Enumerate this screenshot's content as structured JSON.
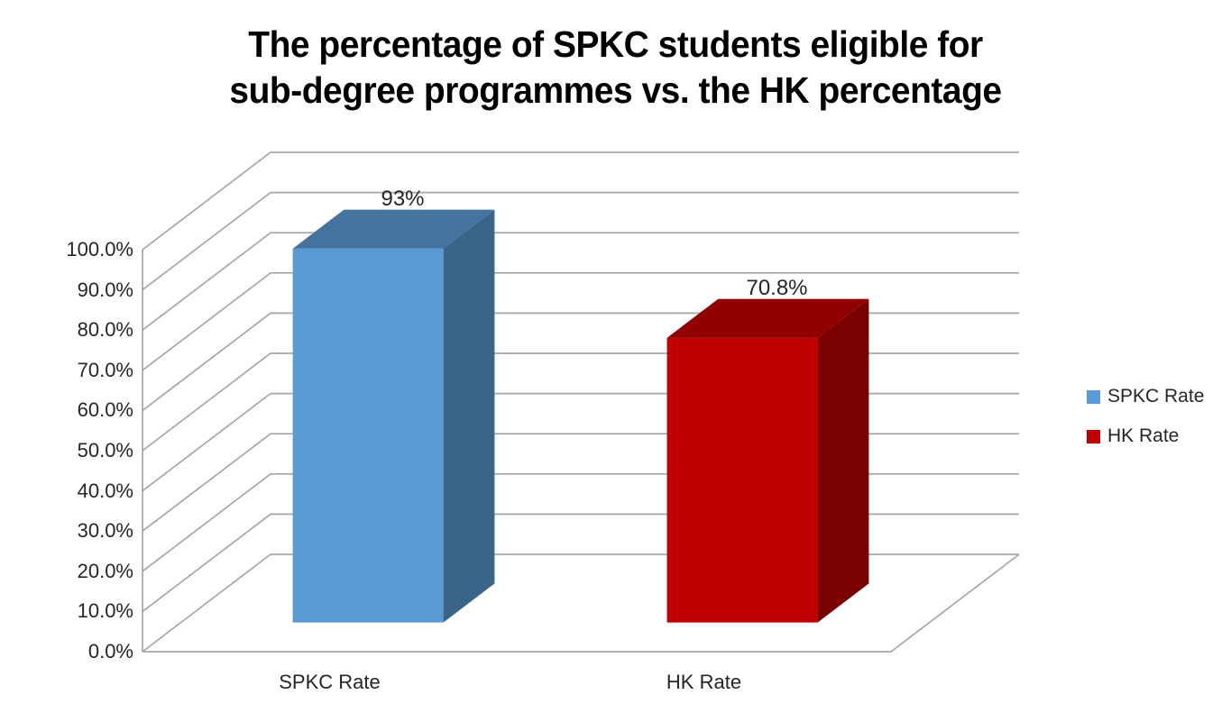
{
  "title": {
    "line1": "The percentage of SPKC students eligible for",
    "line2": "sub-degree programmes vs. the HK percentage"
  },
  "chart_data": {
    "type": "bar",
    "style": "3d-column",
    "title": "The percentage of SPKC students eligible for sub-degree programmes vs. the HK percentage",
    "categories": [
      "SPKC Rate",
      "HK Rate"
    ],
    "series": [
      {
        "name": "SPKC Rate",
        "value": 93,
        "label": "93%",
        "color": "#5B9BD5",
        "color_top": "#44739F",
        "color_side": "#3A6589"
      },
      {
        "name": "HK Rate",
        "value": 70.8,
        "label": "70.8%",
        "color": "#C00000",
        "color_top": "#900000",
        "color_side": "#7B0000"
      }
    ],
    "y_axis": {
      "min": 0,
      "max": 100,
      "step": 10,
      "tick_labels": [
        "0.0%",
        "10.0%",
        "20.0%",
        "30.0%",
        "40.0%",
        "50.0%",
        "60.0%",
        "70.0%",
        "80.0%",
        "90.0%",
        "100.0%"
      ]
    },
    "legend": {
      "position": "right",
      "items": [
        {
          "label": "SPKC Rate",
          "color": "#5B9BD5"
        },
        {
          "label": "HK Rate",
          "color": "#C00000"
        }
      ]
    },
    "gridline_color": "#A6A6A6",
    "text_color": "#262626",
    "grid": true
  }
}
